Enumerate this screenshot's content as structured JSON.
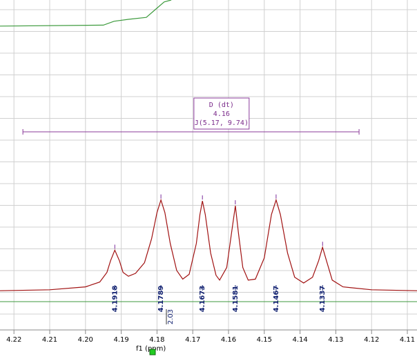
{
  "chart_data": {
    "type": "line",
    "x_label": "f1 (ppm)",
    "xlim": [
      4.2239,
      4.1073
    ],
    "ylim": [
      -0.41,
      3.02
    ],
    "xticks": [
      4.22,
      4.21,
      {
        "value": 4.2,
        "label": "4.20"
      },
      4.19,
      4.18,
      4.17,
      4.16,
      4.15,
      4.14,
      4.13,
      4.12,
      4.11
    ],
    "grid": true,
    "series": [
      {
        "name": "spectrum",
        "color": "#a01010",
        "x": [
          4.2239,
          4.21,
          4.2,
          4.196,
          4.194,
          4.193,
          4.1918,
          4.1905,
          4.1895,
          4.188,
          4.186,
          4.1835,
          4.1815,
          4.18,
          4.1789,
          4.1778,
          4.1763,
          4.1745,
          4.1728,
          4.171,
          4.169,
          4.168,
          4.1673,
          4.1665,
          4.165,
          4.1635,
          4.1625,
          4.1605,
          4.1592,
          4.1581,
          4.1572,
          4.156,
          4.1545,
          4.1525,
          4.15,
          4.148,
          4.1467,
          4.1455,
          4.1435,
          4.1415,
          4.139,
          4.1365,
          4.1348,
          4.1337,
          4.1326,
          4.131,
          4.128,
          4.12,
          4.1073
        ],
        "values": [
          0.01,
          0.02,
          0.05,
          0.1,
          0.2,
          0.32,
          0.43,
          0.32,
          0.2,
          0.16,
          0.19,
          0.3,
          0.55,
          0.82,
          0.95,
          0.82,
          0.5,
          0.22,
          0.13,
          0.18,
          0.5,
          0.8,
          0.94,
          0.8,
          0.4,
          0.17,
          0.12,
          0.25,
          0.6,
          0.89,
          0.6,
          0.25,
          0.12,
          0.13,
          0.35,
          0.8,
          0.95,
          0.8,
          0.4,
          0.15,
          0.09,
          0.15,
          0.32,
          0.46,
          0.32,
          0.12,
          0.05,
          0.02,
          0.01
        ]
      },
      {
        "name": "integral",
        "color": "#3c9a3c",
        "x": [
          4.2239,
          4.195,
          4.192,
          4.188,
          4.183,
          4.1805,
          4.178,
          4.176
        ],
        "values": [
          2.75,
          2.76,
          2.8,
          2.82,
          2.84,
          2.92,
          3.0,
          3.02
        ]
      }
    ],
    "peaks": [
      4.1918,
      4.1789,
      4.1673,
      4.1581,
      4.1467,
      4.1337
    ],
    "integral_value": 2.03,
    "multiplet": {
      "lines": [
        "D (dt)",
        "4.16",
        "J(5.17, 9.74)"
      ],
      "range": [
        4.2175,
        4.1235
      ]
    }
  }
}
